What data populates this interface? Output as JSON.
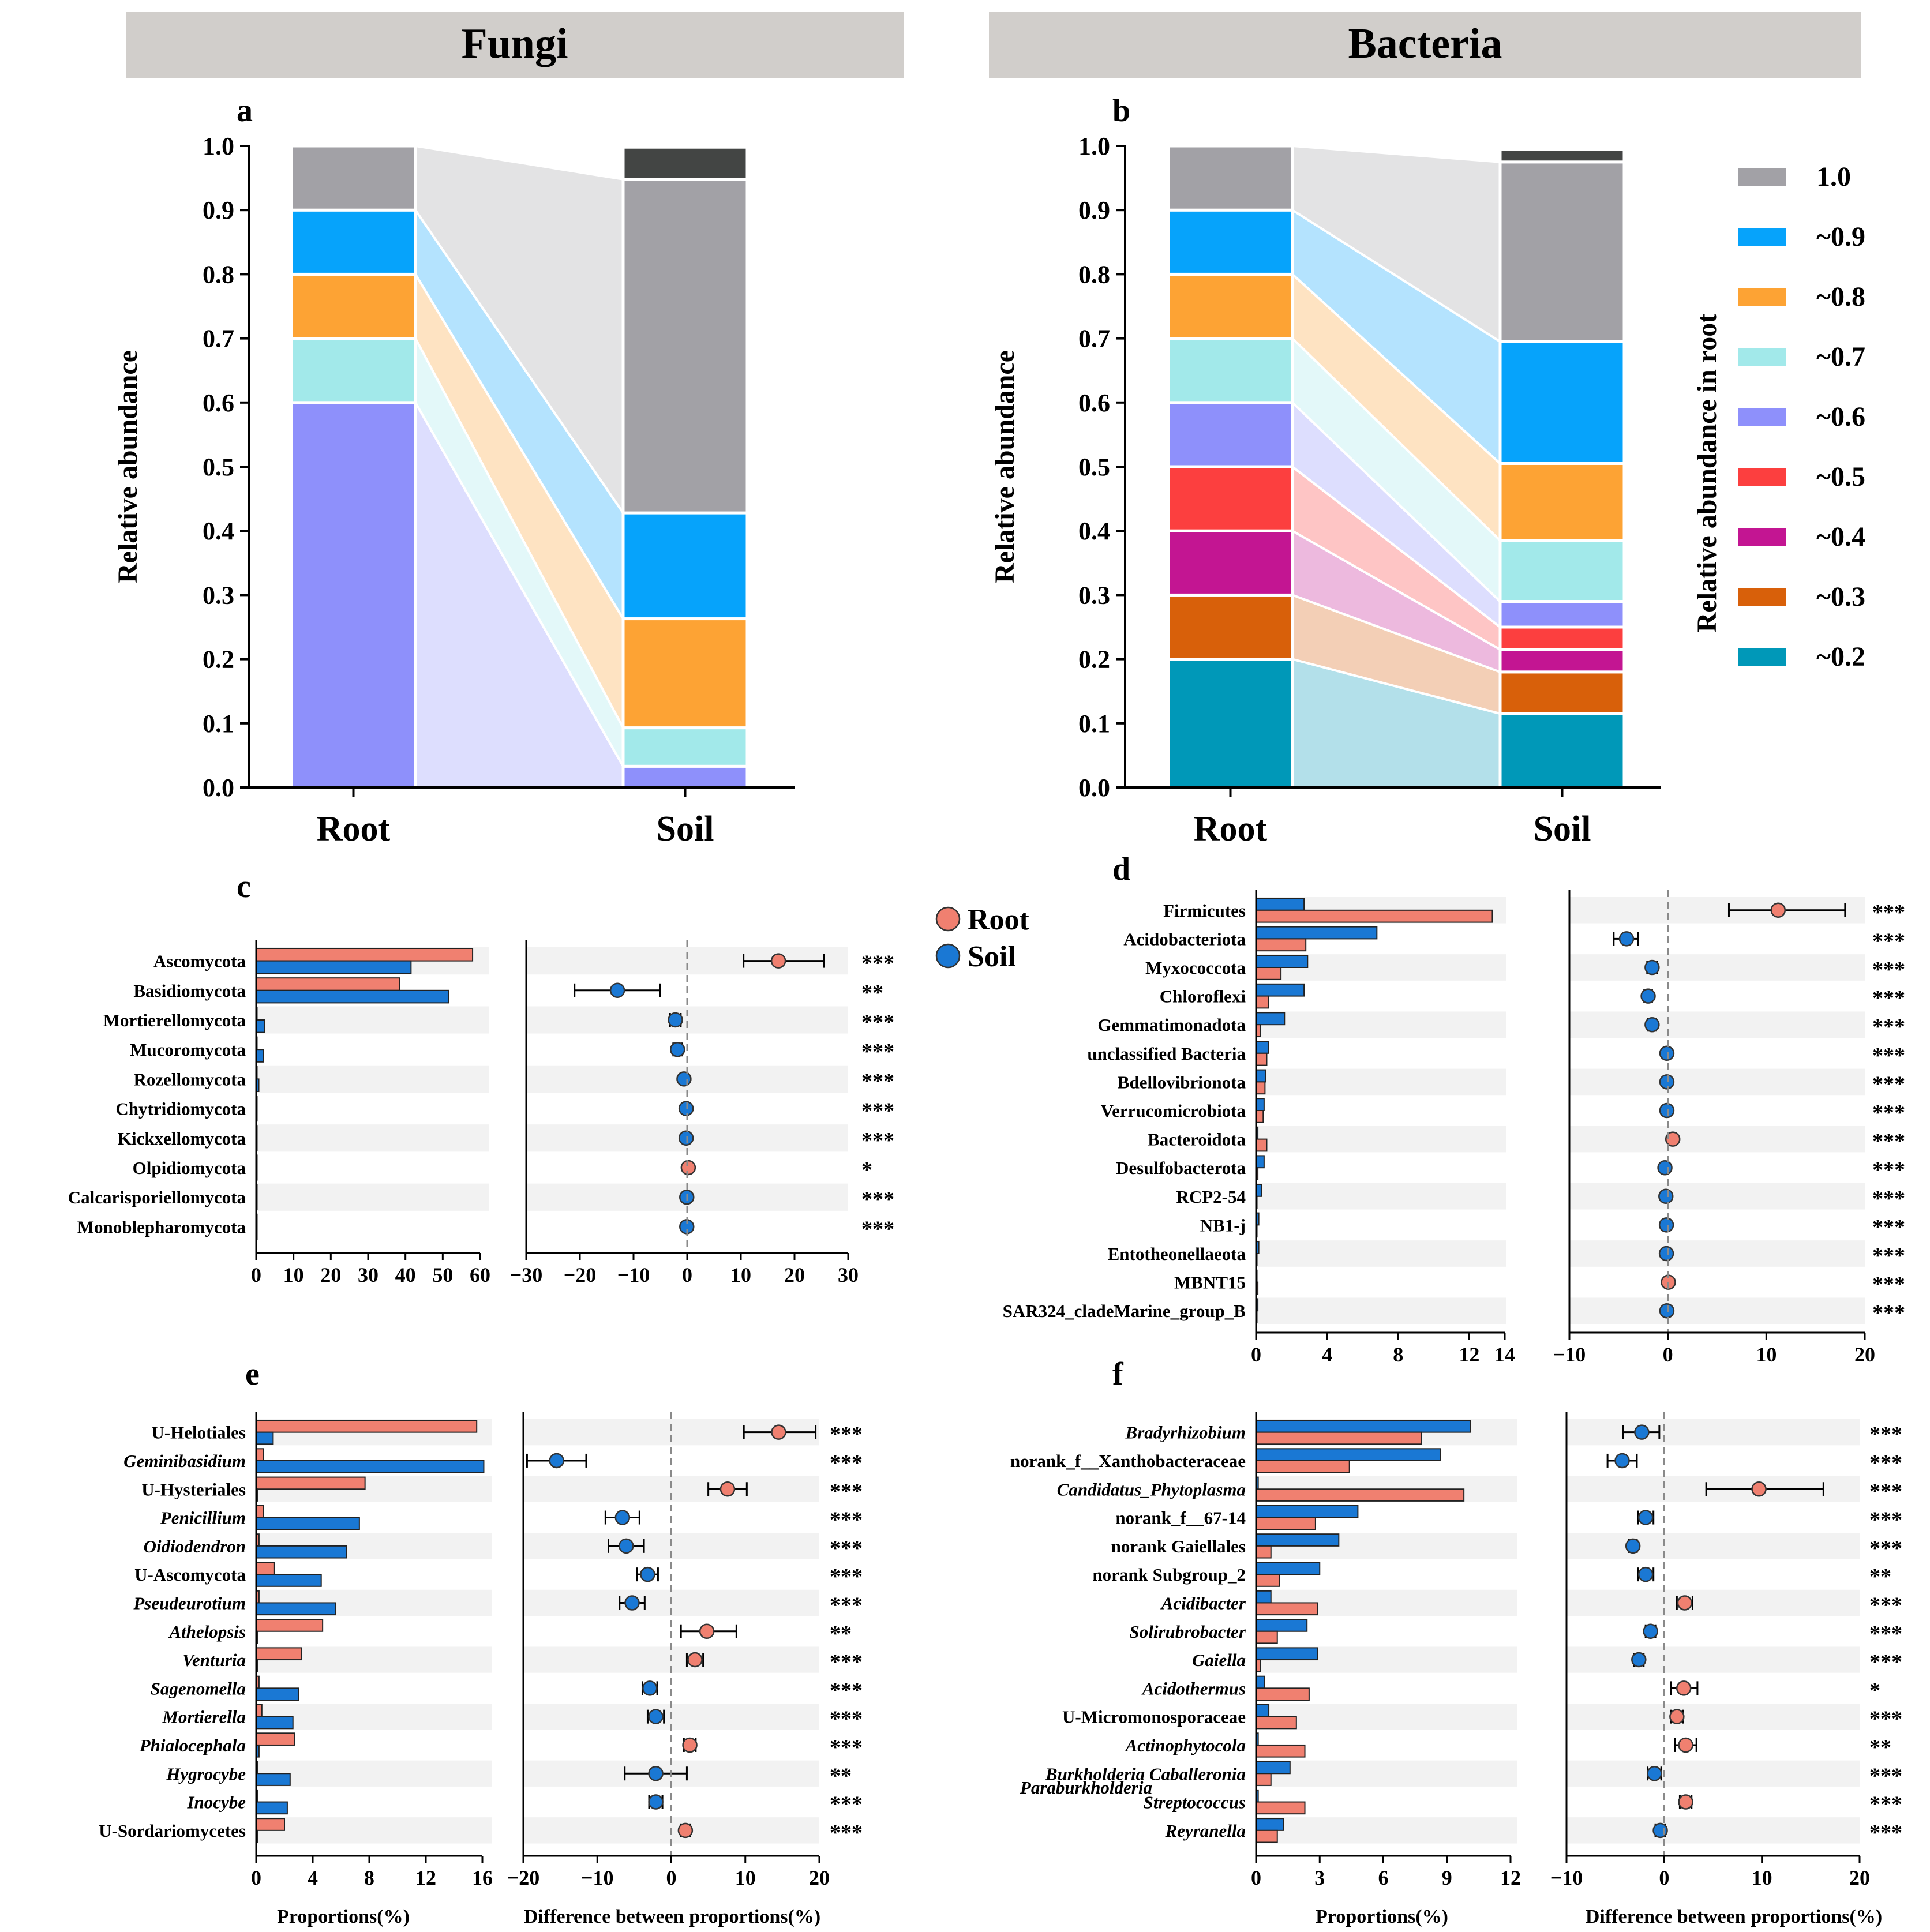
{
  "headers": {
    "fungi": "Fungi",
    "bacteria": "Bacteria"
  },
  "panel_letters": {
    "a": "a",
    "b": "b",
    "c": "c",
    "d": "d",
    "e": "e",
    "f": "f"
  },
  "colors": {
    "root": "#f08070",
    "soil": "#1a78d4",
    "band": "#f2f2f2",
    "c1.0": "#a2a1a6",
    "c0.9": "#06a3fb",
    "c0.8": "#fda334",
    "c0.7": "#a2e9ea",
    "c0.6": "#8e90fb",
    "c0.5": "#fc3f3f",
    "c0.4": "#c31592",
    "c0.3": "#d8600a",
    "c0.2": "#0098b8",
    "dark": "#434544"
  },
  "stack_legend": {
    "title": "Relative abundance in root",
    "items": [
      {
        "label": "1.0",
        "color": "#a2a1a6"
      },
      {
        "label": "~0.9",
        "color": "#06a3fb"
      },
      {
        "label": "~0.8",
        "color": "#fda334"
      },
      {
        "label": "~0.7",
        "color": "#a2e9ea"
      },
      {
        "label": "~0.6",
        "color": "#8e90fb"
      },
      {
        "label": "~0.5",
        "color": "#fc3f3f"
      },
      {
        "label": "~0.4",
        "color": "#c31592"
      },
      {
        "label": "~0.3",
        "color": "#d8600a"
      },
      {
        "label": "~0.2",
        "color": "#0098b8"
      }
    ]
  },
  "group_legend": {
    "root": "Root",
    "soil": "Soil"
  },
  "chart_data": [
    {
      "panel": "a",
      "type": "bar",
      "stacked": true,
      "ylabel": "Relative abundance",
      "ylim": [
        0,
        1.0
      ],
      "yticks": [
        "0.0",
        "0.1",
        "0.2",
        "0.3",
        "0.4",
        "0.5",
        "0.6",
        "0.7",
        "0.8",
        "0.9",
        "1.0"
      ],
      "categories": [
        "Root",
        "Soil"
      ],
      "series": [
        {
          "name": "~0.6",
          "color": "#8e90fb",
          "values": [
            0.6,
            0.033
          ]
        },
        {
          "name": "~0.7",
          "color": "#a2e9ea",
          "values": [
            0.1,
            0.06
          ]
        },
        {
          "name": "~0.8",
          "color": "#fda334",
          "values": [
            0.1,
            0.17
          ]
        },
        {
          "name": "~0.9",
          "color": "#06a3fb",
          "values": [
            0.1,
            0.165
          ]
        },
        {
          "name": "1.0",
          "color": "#a2a1a6",
          "values": [
            0.1,
            0.52
          ]
        },
        {
          "name": "",
          "color": "#434544",
          "values": [
            0,
            0.05
          ]
        }
      ]
    },
    {
      "panel": "b",
      "type": "bar",
      "stacked": true,
      "ylabel": "Relative abundance",
      "ylim": [
        0,
        1.0
      ],
      "yticks": [
        "0.0",
        "0.1",
        "0.2",
        "0.3",
        "0.4",
        "0.5",
        "0.6",
        "0.7",
        "0.8",
        "0.9",
        "1.0"
      ],
      "categories": [
        "Root",
        "Soil"
      ],
      "series": [
        {
          "name": "~0.2",
          "color": "#0098b8",
          "values": [
            0.2,
            0.115
          ]
        },
        {
          "name": "~0.3",
          "color": "#d8600a",
          "values": [
            0.1,
            0.065
          ]
        },
        {
          "name": "~0.4",
          "color": "#c31592",
          "values": [
            0.1,
            0.035
          ]
        },
        {
          "name": "~0.5",
          "color": "#fc3f3f",
          "values": [
            0.1,
            0.035
          ]
        },
        {
          "name": "~0.6",
          "color": "#8e90fb",
          "values": [
            0.1,
            0.04
          ]
        },
        {
          "name": "~0.7",
          "color": "#a2e9ea",
          "values": [
            0.1,
            0.095
          ]
        },
        {
          "name": "~0.8",
          "color": "#fda334",
          "values": [
            0.1,
            0.12
          ]
        },
        {
          "name": "~0.9",
          "color": "#06a3fb",
          "values": [
            0.1,
            0.19
          ]
        },
        {
          "name": "1.0",
          "color": "#a2a1a6",
          "values": [
            0.1,
            0.28
          ]
        },
        {
          "name": "",
          "color": "#434544",
          "values": [
            0,
            0.02
          ]
        }
      ]
    },
    {
      "panel": "c",
      "type": "bar",
      "taxa": [
        "Ascomycota",
        "Basidiomycota",
        "Mortierellomycota",
        "Mucoromycota",
        "Rozellomycota",
        "Chytridiomycota",
        "Kickxellomycota",
        "Olpidiomycota",
        "Calcarisporiellomycota",
        "Monoblepharomycota"
      ],
      "root": [
        58,
        38.5,
        0.2,
        0.1,
        0.1,
        0.05,
        0.05,
        0.2,
        0.02,
        0.02
      ],
      "soil": [
        41.5,
        51.5,
        2.2,
        1.9,
        0.7,
        0.2,
        0.2,
        0.05,
        0.1,
        0.1
      ],
      "diff": [
        17,
        -13,
        -2.2,
        -1.8,
        -0.6,
        -0.2,
        -0.2,
        0.2,
        -0.08,
        -0.08
      ],
      "ci_low": [
        10.5,
        -21,
        -3.2,
        -2.6,
        -1.0,
        -0.3,
        -0.3,
        0.1,
        -0.12,
        -0.12
      ],
      "ci_high": [
        25.5,
        -5,
        -1.2,
        -1.0,
        -0.2,
        -0.1,
        -0.1,
        0.3,
        -0.04,
        -0.04
      ],
      "sig": [
        "***",
        "**",
        "***",
        "***",
        "***",
        "***",
        "***",
        "*",
        "***",
        "***"
      ],
      "xlim_prop": [
        0,
        60
      ],
      "xticks_prop": [
        "0",
        "10",
        "20",
        "30",
        "40",
        "50",
        "60"
      ],
      "xlim_diff": [
        -30,
        30
      ],
      "xticks_diff": [
        "−30",
        "−20",
        "−10",
        "0",
        "10",
        "20",
        "30"
      ]
    },
    {
      "panel": "d",
      "type": "bar",
      "taxa": [
        "Firmicutes",
        "Acidobacteriota",
        "Myxococcota",
        "Chloroflexi",
        "Gemmatimonadota",
        "unclassified Bacteria",
        "Bdellovibrionota",
        "Verrucomicrobiota",
        "Bacteroidota",
        "Desulfobacterota",
        "RCP2-54",
        "NB1-j",
        "Entotheonellaeota",
        "MBNT15",
        "SAR324_cladeMarine_group_B"
      ],
      "root": [
        13.3,
        2.8,
        1.4,
        0.7,
        0.25,
        0.6,
        0.5,
        0.4,
        0.6,
        0.1,
        0.05,
        0.05,
        0.05,
        0.1,
        0.02
      ],
      "soil": [
        2.7,
        6.8,
        2.9,
        2.7,
        1.6,
        0.7,
        0.55,
        0.45,
        0.1,
        0.45,
        0.3,
        0.15,
        0.15,
        0.05,
        0.1
      ],
      "diff": [
        11.2,
        -4.2,
        -1.6,
        -2.0,
        -1.6,
        -0.1,
        -0.1,
        -0.1,
        0.5,
        -0.3,
        -0.2,
        -0.15,
        -0.15,
        0.05,
        -0.1
      ],
      "ci_low": [
        6.2,
        -5.5,
        -2.1,
        -2.4,
        -2.0,
        -0.25,
        -0.2,
        -0.2,
        0.2,
        -0.5,
        -0.35,
        -0.25,
        -0.25,
        0.0,
        -0.2
      ],
      "ci_high": [
        18.0,
        -3.0,
        -1.1,
        -1.6,
        -1.2,
        0.05,
        0.0,
        0.0,
        0.8,
        -0.1,
        -0.05,
        -0.05,
        -0.05,
        0.1,
        0.0
      ],
      "sig": [
        "***",
        "***",
        "***",
        "***",
        "***",
        "***",
        "***",
        "***",
        "***",
        "***",
        "***",
        "***",
        "***",
        "***",
        "***"
      ],
      "xlim_prop": [
        0,
        14
      ],
      "xticks_prop": [
        "0",
        "4",
        "8",
        "12",
        "14"
      ],
      "xlim_diff": [
        -10,
        20
      ],
      "xticks_diff": [
        "−10",
        "0",
        "10",
        "20"
      ]
    },
    {
      "panel": "e",
      "type": "bar",
      "xlabel_prop": "Proportions(%)",
      "xlabel_diff": "Difference between proportions(%)",
      "taxa": [
        "U-Helotiales",
        "Geminibasidium",
        "U-Hysteriales",
        "Penicillium",
        "Oidiodendron",
        "U-Ascomycota",
        "Pseudeurotium",
        "Athelopsis",
        "Venturia",
        "Sagenomella",
        "Mortierella",
        "Phialocephala",
        "Hygrocybe",
        "Inocybe",
        "U-Sordariomycetes"
      ],
      "italic": [
        false,
        true,
        false,
        true,
        true,
        false,
        true,
        true,
        true,
        true,
        true,
        true,
        true,
        true,
        false
      ],
      "root": [
        15.6,
        0.5,
        7.7,
        0.5,
        0.2,
        1.3,
        0.2,
        4.7,
        3.2,
        0.2,
        0.4,
        2.7,
        0.1,
        0.1,
        2.0
      ],
      "soil": [
        1.2,
        16.1,
        0.1,
        7.3,
        6.4,
        4.6,
        5.6,
        0.1,
        0.1,
        3.0,
        2.6,
        0.2,
        2.4,
        2.2,
        0.1
      ],
      "diff": [
        14.5,
        -15.5,
        7.6,
        -6.6,
        -6.1,
        -3.2,
        -5.3,
        4.8,
        3.2,
        -2.9,
        -2.1,
        2.5,
        -2.1,
        -2.1,
        1.9
      ],
      "ci_low": [
        9.8,
        -19.5,
        5.0,
        -8.9,
        -8.5,
        -4.6,
        -7.0,
        1.3,
        2.1,
        -3.9,
        -3.2,
        1.7,
        -6.3,
        -3.0,
        1.3
      ],
      "ci_high": [
        19.5,
        -11.5,
        10.2,
        -4.3,
        -3.7,
        -1.8,
        -3.6,
        8.8,
        4.3,
        -1.9,
        -1.0,
        3.3,
        2.1,
        -1.2,
        2.5
      ],
      "sig": [
        "***",
        "***",
        "***",
        "***",
        "***",
        "***",
        "***",
        "**",
        "***",
        "***",
        "***",
        "***",
        "**",
        "***",
        "***"
      ],
      "xlim_prop": [
        0,
        16
      ],
      "xticks_prop": [
        "0",
        "4",
        "8",
        "12",
        "16"
      ],
      "xlim_diff": [
        -20,
        20
      ],
      "xticks_diff": [
        "−20",
        "−10",
        "0",
        "10",
        "20"
      ]
    },
    {
      "panel": "f",
      "type": "bar",
      "xlabel_prop": "Proportions(%)",
      "xlabel_diff": "Difference between proportions(%)",
      "taxa": [
        "Bradyrhizobium",
        "norank_f__Xanthobacteraceae",
        "Candidatus_Phytoplasma",
        "norank_f__67-14",
        "norank Gaiellales",
        "norank Subgroup_2",
        "Acidibacter",
        "Solirubrobacter",
        "Gaiella",
        "Acidothermus",
        "U-Micromonosporaceae",
        "Actinophytocola",
        "Burkholderia Caballeronia Paraburkholderia",
        "Streptococcus",
        "Reyranella"
      ],
      "taxa_display": [
        "Bradyrhizobium",
        "norank_f__Xanthobacteraceae",
        "Candidatus_Phytoplasma",
        "norank_f__67-14",
        "norank Gaiellales",
        "norank Subgroup_2",
        "Acidibacter",
        "Solirubrobacter",
        "Gaiella",
        "Acidothermus",
        "U-Micromonosporaceae",
        "Actinophytocola",
        "Burkholderia Caballeronia",
        "Streptococcus",
        "Reyranella"
      ],
      "extra_label": "Paraburkholderia",
      "italic": [
        true,
        false,
        true,
        false,
        false,
        false,
        true,
        true,
        true,
        true,
        false,
        true,
        true,
        true,
        true
      ],
      "root": [
        7.8,
        4.4,
        9.8,
        2.8,
        0.7,
        1.1,
        2.9,
        1.0,
        0.2,
        2.5,
        1.9,
        2.3,
        0.7,
        2.3,
        1.0
      ],
      "soil": [
        10.1,
        8.7,
        0.1,
        4.8,
        3.9,
        3.0,
        0.7,
        2.4,
        2.9,
        0.4,
        0.6,
        0.1,
        1.6,
        0.1,
        1.3
      ],
      "diff": [
        -2.3,
        -4.3,
        9.7,
        -1.9,
        -3.2,
        -1.9,
        2.1,
        -1.4,
        -2.6,
        2.0,
        1.3,
        2.2,
        -1.0,
        2.2,
        -0.4
      ],
      "ci_low": [
        -4.2,
        -5.8,
        4.3,
        -2.7,
        -3.6,
        -2.7,
        1.3,
        -1.9,
        -3.1,
        0.7,
        0.7,
        1.1,
        -1.7,
        1.6,
        -0.9
      ],
      "ci_high": [
        -0.5,
        -2.8,
        16.3,
        -1.1,
        -2.8,
        -1.1,
        2.9,
        -0.9,
        -2.1,
        3.4,
        1.9,
        3.3,
        -0.3,
        2.8,
        0.1
      ],
      "sig": [
        "***",
        "***",
        "***",
        "***",
        "***",
        "**",
        "***",
        "***",
        "***",
        "*",
        "***",
        "**",
        "***",
        "***",
        "***"
      ],
      "xlim_prop": [
        0,
        12
      ],
      "xticks_prop": [
        "0",
        "3",
        "6",
        "9",
        "12"
      ],
      "xlim_diff": [
        -10,
        20
      ],
      "xticks_diff": [
        "−10",
        "0",
        "10",
        "20"
      ]
    }
  ]
}
